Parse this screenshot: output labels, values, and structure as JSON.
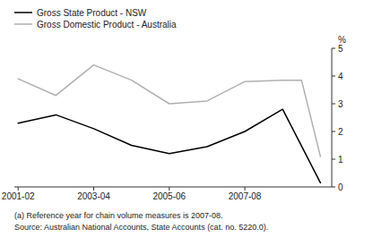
{
  "chart_data": {
    "type": "line",
    "y_label": "%",
    "xlim": [
      -0.1,
      8.3
    ],
    "xticks": [
      {
        "value": 0,
        "label": "2001-02"
      },
      {
        "value": 2,
        "label": "2003-04"
      },
      {
        "value": 4,
        "label": "2005-06"
      },
      {
        "value": 6,
        "label": "2007-08"
      }
    ],
    "ylim": [
      0,
      5
    ],
    "yticks": [
      0,
      1,
      2,
      3,
      4,
      5
    ],
    "grid": false,
    "legend": "top",
    "series": [
      {
        "name": "Gross State Product - NSW",
        "color": "#000000",
        "x": [
          0,
          1,
          2,
          3,
          4,
          5,
          6,
          7,
          8
        ],
        "values": [
          2.3,
          2.6,
          2.1,
          1.5,
          1.2,
          1.45,
          2.0,
          2.8,
          0.15
        ]
      },
      {
        "name": "Gross Domestic Product - Australia",
        "color": "#b0b0b0",
        "x": [
          0,
          1,
          2,
          3,
          4,
          5,
          6,
          7,
          7.5,
          8
        ],
        "values": [
          3.9,
          3.3,
          4.4,
          3.85,
          3.0,
          3.1,
          3.8,
          3.85,
          3.85,
          1.1
        ]
      }
    ],
    "annotations": [
      "(a) Reference year for chain volume measures is 2007-08.",
      "Source: Australian National Accounts, State Accounts (cat. no. 5220.0)."
    ]
  }
}
